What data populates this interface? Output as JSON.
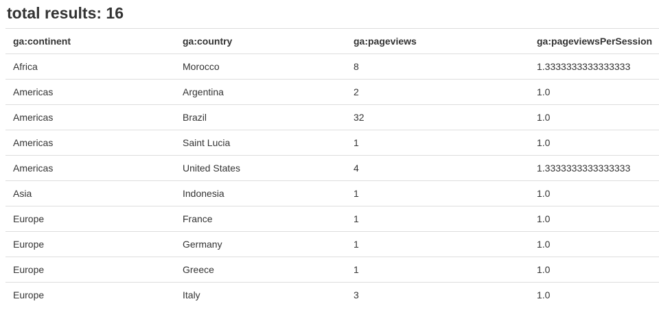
{
  "summary": {
    "total_label": "total results: 16"
  },
  "table": {
    "headers": [
      "ga:continent",
      "ga:country",
      "ga:pageviews",
      "ga:pageviewsPerSession"
    ],
    "rows": [
      [
        "Africa",
        "Morocco",
        "8",
        "1.3333333333333333"
      ],
      [
        "Americas",
        "Argentina",
        "2",
        "1.0"
      ],
      [
        "Americas",
        "Brazil",
        "32",
        "1.0"
      ],
      [
        "Americas",
        "Saint Lucia",
        "1",
        "1.0"
      ],
      [
        "Americas",
        "United States",
        "4",
        "1.3333333333333333"
      ],
      [
        "Asia",
        "Indonesia",
        "1",
        "1.0"
      ],
      [
        "Europe",
        "France",
        "1",
        "1.0"
      ],
      [
        "Europe",
        "Germany",
        "1",
        "1.0"
      ],
      [
        "Europe",
        "Greece",
        "1",
        "1.0"
      ],
      [
        "Europe",
        "Italy",
        "3",
        "1.0"
      ]
    ]
  }
}
